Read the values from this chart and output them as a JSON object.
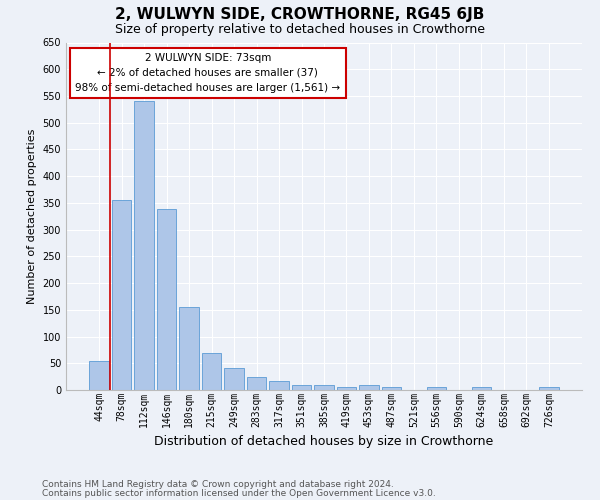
{
  "title": "2, WULWYN SIDE, CROWTHORNE, RG45 6JB",
  "subtitle": "Size of property relative to detached houses in Crowthorne",
  "xlabel": "Distribution of detached houses by size in Crowthorne",
  "ylabel": "Number of detached properties",
  "bar_labels": [
    "44sqm",
    "78sqm",
    "112sqm",
    "146sqm",
    "180sqm",
    "215sqm",
    "249sqm",
    "283sqm",
    "317sqm",
    "351sqm",
    "385sqm",
    "419sqm",
    "453sqm",
    "487sqm",
    "521sqm",
    "556sqm",
    "590sqm",
    "624sqm",
    "658sqm",
    "692sqm",
    "726sqm"
  ],
  "bar_values": [
    55,
    355,
    540,
    338,
    155,
    70,
    42,
    25,
    17,
    10,
    10,
    5,
    10,
    5,
    0,
    5,
    0,
    5,
    0,
    0,
    5
  ],
  "bar_color": "#aec6e8",
  "bar_edge_color": "#5b9bd5",
  "highlight_line_color": "#cc0000",
  "annotation_text": "2 WULWYN SIDE: 73sqm\n← 2% of detached houses are smaller (37)\n98% of semi-detached houses are larger (1,561) →",
  "annotation_box_color": "#cc0000",
  "ylim": [
    0,
    650
  ],
  "yticks": [
    0,
    50,
    100,
    150,
    200,
    250,
    300,
    350,
    400,
    450,
    500,
    550,
    600,
    650
  ],
  "background_color": "#edf1f8",
  "grid_color": "#ffffff",
  "footer_line1": "Contains HM Land Registry data © Crown copyright and database right 2024.",
  "footer_line2": "Contains public sector information licensed under the Open Government Licence v3.0.",
  "title_fontsize": 11,
  "subtitle_fontsize": 9,
  "xlabel_fontsize": 9,
  "ylabel_fontsize": 8,
  "tick_fontsize": 7,
  "footer_fontsize": 6.5,
  "annotation_fontsize": 7.5
}
